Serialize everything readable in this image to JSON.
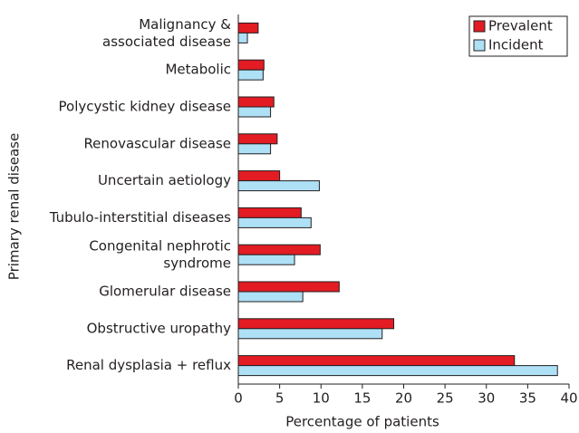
{
  "chart_data": {
    "type": "barh",
    "categories": [
      "Malignancy &\nassociated disease",
      "Metabolic",
      "Polycystic kidney disease",
      "Renovascular disease",
      "Uncertain aetiology",
      "Tubulo-interstitial diseases",
      "Congenital nephrotic\nsyndrome",
      "Glomerular disease",
      "Obstructive uropathy",
      "Renal dysplasia + reflux"
    ],
    "series": [
      {
        "name": "Prevalent",
        "color": "#e31b23",
        "values": [
          2.4,
          3.1,
          4.3,
          4.7,
          5.0,
          7.6,
          9.9,
          12.2,
          18.8,
          33.4
        ]
      },
      {
        "name": "Incident",
        "color": "#aee0f6",
        "values": [
          1.1,
          3.0,
          3.9,
          3.9,
          9.8,
          8.8,
          6.8,
          7.8,
          17.4,
          38.6
        ]
      }
    ],
    "xlim": [
      0,
      40
    ],
    "xticks": [
      0,
      5,
      10,
      15,
      20,
      25,
      30,
      35,
      40
    ],
    "xlabel": "Percentage of patients",
    "ylabel": "Primary renal disease",
    "legend": "upper right",
    "grid": false
  }
}
